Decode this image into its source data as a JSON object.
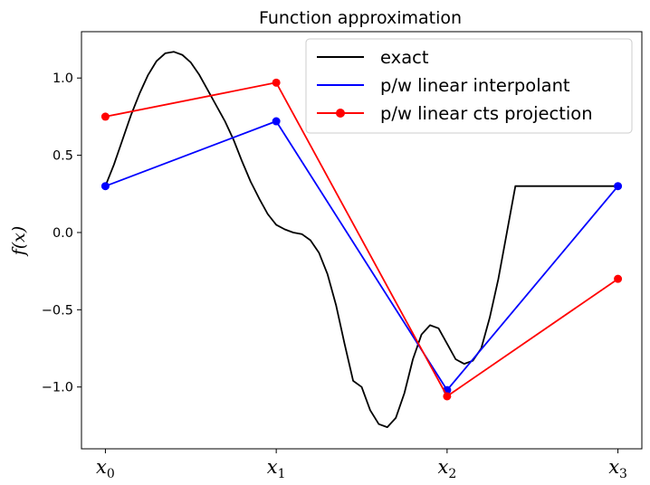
{
  "chart_data": {
    "type": "line",
    "title": "Function approximation",
    "ylabel": "f(x)",
    "xlabel": "",
    "xlim": [
      -0.14,
      3.14
    ],
    "ylim": [
      -1.4,
      1.3
    ],
    "x_ticks": [
      {
        "value": 0,
        "base": "x",
        "sub": "0"
      },
      {
        "value": 1,
        "base": "x",
        "sub": "1"
      },
      {
        "value": 2,
        "base": "x",
        "sub": "2"
      },
      {
        "value": 3,
        "base": "x",
        "sub": "3"
      }
    ],
    "y_ticks": [
      {
        "value": 1.0,
        "label": "1.0"
      },
      {
        "value": 0.5,
        "label": "0.5"
      },
      {
        "value": 0.0,
        "label": "0.0"
      },
      {
        "value": -0.5,
        "label": "−0.5"
      },
      {
        "value": -1.0,
        "label": "−1.0"
      }
    ],
    "legend_position": "top-right",
    "grid": false,
    "series": [
      {
        "name": "exact",
        "color": "#000000",
        "markers": false,
        "x": [
          0.0,
          0.05,
          0.1,
          0.15,
          0.2,
          0.25,
          0.3,
          0.35,
          0.4,
          0.45,
          0.5,
          0.55,
          0.6,
          0.65,
          0.7,
          0.75,
          0.8,
          0.85,
          0.9,
          0.95,
          1.0,
          1.05,
          1.1,
          1.15,
          1.2,
          1.25,
          1.3,
          1.35,
          1.4,
          1.45,
          1.5,
          1.55,
          1.6,
          1.65,
          1.7,
          1.75,
          1.8,
          1.85,
          1.9,
          1.95,
          2.0,
          2.05,
          2.1,
          2.15,
          2.2,
          2.25,
          2.3,
          2.35,
          2.4,
          2.45,
          2.5,
          2.55,
          2.6,
          2.65,
          2.7,
          2.75,
          2.8,
          2.85,
          2.9,
          2.95,
          3.0
        ],
        "y": [
          0.3,
          0.44,
          0.6,
          0.76,
          0.9,
          1.02,
          1.11,
          1.16,
          1.17,
          1.15,
          1.1,
          1.02,
          0.92,
          0.82,
          0.72,
          0.6,
          0.46,
          0.33,
          0.22,
          0.12,
          0.05,
          0.02,
          0.0,
          -0.01,
          -0.05,
          -0.13,
          -0.27,
          -0.47,
          -0.72,
          -0.96,
          -1.0,
          -1.15,
          -1.24,
          -1.26,
          -1.2,
          -1.04,
          -0.82,
          -0.66,
          -0.6,
          -0.62,
          -0.72,
          -0.82,
          -0.85,
          -0.83,
          -0.75,
          -0.55,
          -0.3,
          0.0,
          0.3,
          0.3,
          0.3,
          0.3,
          0.3,
          0.3,
          0.3,
          0.3,
          0.3,
          0.3,
          0.3,
          0.3,
          0.3
        ]
      },
      {
        "name": "p/w linear interpolant",
        "color": "#0000ff",
        "markers": true,
        "x": [
          0,
          1,
          2,
          3
        ],
        "y": [
          0.3,
          0.72,
          -1.02,
          0.3
        ]
      },
      {
        "name": "p/w linear cts projection",
        "color": "#ff0000",
        "markers": true,
        "x": [
          0,
          1,
          2,
          3
        ],
        "y": [
          0.75,
          0.97,
          -1.06,
          -0.3
        ]
      }
    ]
  }
}
